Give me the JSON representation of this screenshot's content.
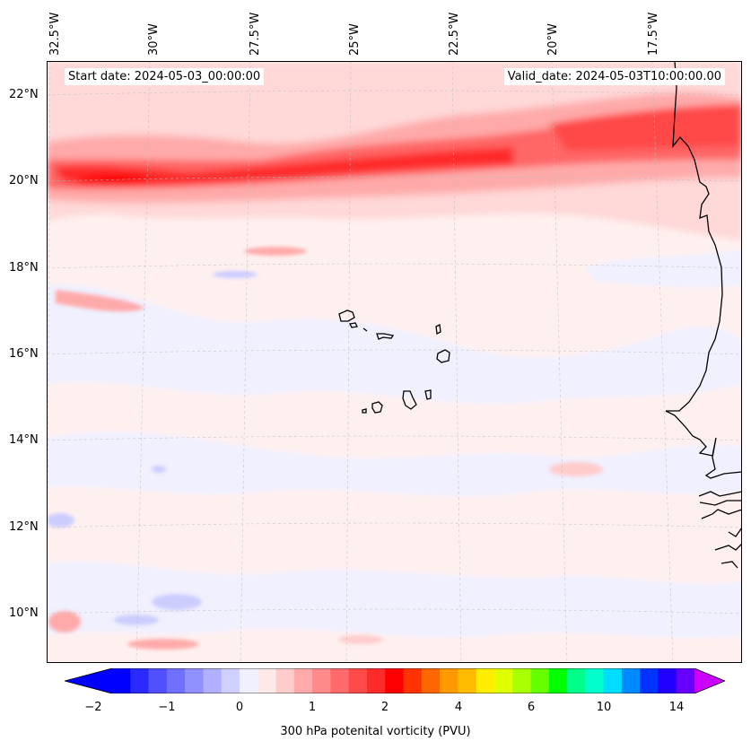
{
  "map": {
    "start_date": "Start date: 2024-05-03_00:00:00",
    "valid_date": "Valid_date: 2024-05-03T10:00:00.00",
    "lon_labels": [
      "32.5°W",
      "30°W",
      "27.5°W",
      "25°W",
      "22.5°W",
      "20°W",
      "17.5°W"
    ],
    "lat_labels": [
      "22°N",
      "20°N",
      "18°N",
      "16°N",
      "14°N",
      "12°N",
      "10°N"
    ],
    "field_colors": {
      "background": "#fff0f0",
      "weak_positive": "#ffd8d8",
      "moderate": "#ffaaaa",
      "strong": "#ff6666",
      "very_strong": "#ff2a2a",
      "max": "#ff0000",
      "weak_negative": "#f0f0ff",
      "negative": "#ccccff",
      "coastline": "#000000"
    }
  },
  "colorbar": {
    "label": "300 hPa potenital vorticity (PVU)",
    "ticks": [
      "−2",
      "−1",
      "0",
      "1",
      "2",
      "4",
      "6",
      "10",
      "14"
    ],
    "colors": [
      "#0000ff",
      "#2a2aff",
      "#5050ff",
      "#7070ff",
      "#9090ff",
      "#b0b0ff",
      "#d0d0ff",
      "#f0f0ff",
      "#ffe8e8",
      "#ffcccc",
      "#ffaaaa",
      "#ff8a8a",
      "#ff6a6a",
      "#ff4a4a",
      "#ff2a2a",
      "#ff0000",
      "#ff3300",
      "#ff6600",
      "#ff9900",
      "#ffbb00",
      "#ffee00",
      "#ddff00",
      "#aaff00",
      "#66ff00",
      "#00ff00",
      "#00ff88",
      "#00ffcc",
      "#00ddff",
      "#0088ff",
      "#0033ff",
      "#2200ff",
      "#6600ff"
    ],
    "under_color": "#0000ff",
    "over_color": "#cc00ff"
  }
}
